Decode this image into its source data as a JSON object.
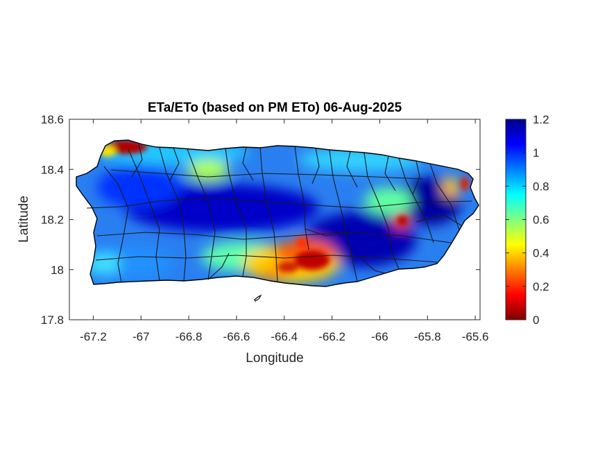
{
  "figure": {
    "title": "ETa/ETo (based on PM ETo) 06-Aug-2025",
    "xlabel": "Longitude",
    "ylabel": "Latitude",
    "x_ticks": [
      "-67.2",
      "-67",
      "-66.8",
      "-66.6",
      "-66.4",
      "-66.2",
      "-66",
      "-65.8",
      "-65.6"
    ],
    "y_ticks": [
      "18.6",
      "18.4",
      "18.2",
      "18",
      "17.8"
    ],
    "colorbar_ticks": [
      "1.2",
      "1",
      "0.8",
      "0.6",
      "0.4",
      "0.2",
      "0"
    ]
  },
  "chart_data": {
    "type": "heatmap",
    "title": "ETa/ETo (based on PM ETo) 06-Aug-2025",
    "xlabel": "Longitude",
    "ylabel": "Latitude",
    "xlim": [
      -67.3,
      -65.58
    ],
    "ylim": [
      17.8,
      18.6
    ],
    "x_ticks": [
      -67.2,
      -67,
      -66.8,
      -66.6,
      -66.4,
      -66.2,
      -66,
      -65.8,
      -65.6
    ],
    "y_ticks": [
      18.6,
      18.4,
      18.2,
      18,
      17.8
    ],
    "color_range": [
      0,
      1.2
    ],
    "colorbar_ticks": [
      1.2,
      1,
      0.8,
      0.6,
      0.4,
      0.2,
      0
    ],
    "colormap": "jet",
    "grid": false,
    "colorbar_position": "right",
    "region": "Puerto Rico",
    "low_value_areas": [
      {
        "lon": -67.07,
        "lat": 18.49,
        "value": 0.05
      },
      {
        "lon": -66.33,
        "lat": 18.02,
        "value": 0.15
      },
      {
        "lon": -66.43,
        "lat": 17.98,
        "value": 0.2
      },
      {
        "lon": -66.22,
        "lat": 18.03,
        "value": 0.3
      },
      {
        "lon": -65.95,
        "lat": 18.2,
        "value": 0.2
      },
      {
        "lon": -65.66,
        "lat": 18.33,
        "value": 0.3
      }
    ]
  }
}
